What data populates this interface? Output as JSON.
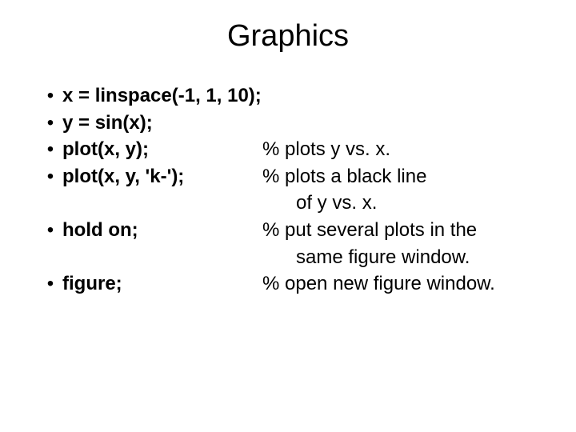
{
  "title": "Graphics",
  "rows": [
    {
      "bullet": "•",
      "cmd": "x = linspace(-1, 1, 10);",
      "comment": ""
    },
    {
      "bullet": "•",
      "cmd": "y = sin(x);",
      "comment": ""
    },
    {
      "bullet": "•",
      "cmd": "plot(x, y);",
      "comment": "% plots y vs. x."
    },
    {
      "bullet": "•",
      "cmd": "plot(x, y, 'k-');",
      "comment": "% plots a black line"
    }
  ],
  "cont1": "of y vs. x.",
  "row5": {
    "bullet": "•",
    "cmd": "hold on;",
    "comment": "% put several plots in the"
  },
  "cont2": "same figure window.",
  "row6": {
    "bullet": "•",
    "cmd": "figure;",
    "comment": "% open new figure window."
  },
  "colors": {
    "text": "#000000",
    "background": "#ffffff"
  },
  "font": {
    "title_size": 38,
    "body_size": 24,
    "cmd_weight": 700,
    "comment_weight": 400
  }
}
